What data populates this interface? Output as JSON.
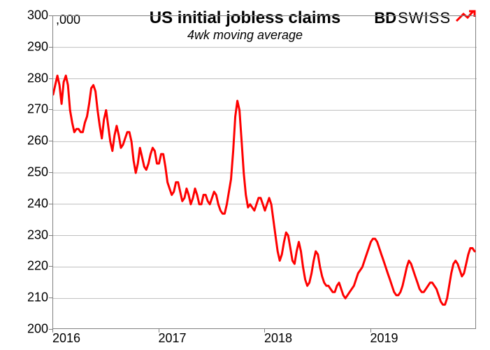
{
  "chart": {
    "type": "line",
    "title": "US initial jobless claims",
    "subtitle": "4wk moving average",
    "unit_label": ",000",
    "title_fontsize": 24,
    "subtitle_fontsize": 18,
    "background_color": "#ffffff",
    "border_color": "#808080",
    "grid_color": "#808080",
    "line_color": "#ff0000",
    "line_width": 3,
    "x_axis": {
      "min": 2016.0,
      "max": 2020.0,
      "ticks": [
        2016,
        2017,
        2018,
        2019
      ],
      "fontsize": 18
    },
    "y_axis": {
      "min": 200,
      "max": 300,
      "ticks": [
        200,
        210,
        220,
        230,
        240,
        250,
        260,
        270,
        280,
        290,
        300
      ],
      "fontsize": 18
    },
    "series": {
      "x": [
        2016.0,
        2016.02,
        2016.04,
        2016.06,
        2016.08,
        2016.1,
        2016.12,
        2016.14,
        2016.16,
        2016.18,
        2016.2,
        2016.22,
        2016.24,
        2016.26,
        2016.28,
        2016.3,
        2016.32,
        2016.34,
        2016.36,
        2016.38,
        2016.4,
        2016.42,
        2016.44,
        2016.46,
        2016.48,
        2016.5,
        2016.52,
        2016.54,
        2016.56,
        2016.58,
        2016.6,
        2016.62,
        2016.64,
        2016.66,
        2016.68,
        2016.7,
        2016.72,
        2016.74,
        2016.76,
        2016.78,
        2016.8,
        2016.82,
        2016.84,
        2016.86,
        2016.88,
        2016.9,
        2016.92,
        2016.94,
        2016.96,
        2016.98,
        2017.0,
        2017.02,
        2017.04,
        2017.06,
        2017.08,
        2017.1,
        2017.12,
        2017.14,
        2017.16,
        2017.18,
        2017.2,
        2017.22,
        2017.24,
        2017.26,
        2017.28,
        2017.3,
        2017.32,
        2017.34,
        2017.36,
        2017.38,
        2017.4,
        2017.42,
        2017.44,
        2017.46,
        2017.48,
        2017.5,
        2017.52,
        2017.54,
        2017.56,
        2017.58,
        2017.6,
        2017.62,
        2017.64,
        2017.66,
        2017.68,
        2017.7,
        2017.72,
        2017.74,
        2017.76,
        2017.78,
        2017.8,
        2017.82,
        2017.84,
        2017.86,
        2017.88,
        2017.9,
        2017.92,
        2017.94,
        2017.96,
        2017.98,
        2018.0,
        2018.02,
        2018.04,
        2018.06,
        2018.08,
        2018.1,
        2018.12,
        2018.14,
        2018.16,
        2018.18,
        2018.2,
        2018.22,
        2018.24,
        2018.26,
        2018.28,
        2018.3,
        2018.32,
        2018.34,
        2018.36,
        2018.38,
        2018.4,
        2018.42,
        2018.44,
        2018.46,
        2018.48,
        2018.5,
        2018.52,
        2018.54,
        2018.56,
        2018.58,
        2018.6,
        2018.62,
        2018.64,
        2018.66,
        2018.68,
        2018.7,
        2018.72,
        2018.74,
        2018.76,
        2018.78,
        2018.8,
        2018.82,
        2018.84,
        2018.86,
        2018.88,
        2018.9,
        2018.92,
        2018.94,
        2018.96,
        2018.98,
        2019.0,
        2019.02,
        2019.04,
        2019.06,
        2019.08,
        2019.1,
        2019.12,
        2019.14,
        2019.16,
        2019.18,
        2019.2,
        2019.22,
        2019.24,
        2019.26,
        2019.28,
        2019.3,
        2019.32,
        2019.34,
        2019.36,
        2019.38,
        2019.4,
        2019.42,
        2019.44,
        2019.46,
        2019.48,
        2019.5,
        2019.52,
        2019.54,
        2019.56,
        2019.58,
        2019.6,
        2019.62,
        2019.64,
        2019.66,
        2019.68,
        2019.7,
        2019.72,
        2019.74,
        2019.76,
        2019.78,
        2019.8,
        2019.82,
        2019.84,
        2019.86,
        2019.88,
        2019.9,
        2019.92,
        2019.94,
        2019.96,
        2019.98
      ],
      "y": [
        275,
        278,
        281,
        278,
        272,
        279,
        281,
        278,
        270,
        266,
        263,
        264,
        264,
        263,
        263,
        266,
        268,
        272,
        277,
        278,
        276,
        270,
        265,
        261,
        267,
        270,
        265,
        260,
        257,
        262,
        265,
        262,
        258,
        259,
        261,
        263,
        263,
        260,
        254,
        250,
        253,
        258,
        255,
        252,
        251,
        253,
        256,
        258,
        257,
        253,
        253,
        256,
        256,
        252,
        247,
        245,
        243,
        244,
        247,
        247,
        244,
        241,
        242,
        245,
        243,
        240,
        242,
        245,
        243,
        240,
        240,
        243,
        243,
        241,
        240,
        242,
        244,
        243,
        240,
        238,
        237,
        237,
        240,
        244,
        248,
        257,
        268,
        273,
        270,
        260,
        250,
        243,
        239,
        240,
        239,
        238,
        240,
        242,
        242,
        240,
        238,
        240,
        242,
        240,
        235,
        230,
        225,
        222,
        224,
        228,
        231,
        230,
        226,
        222,
        221,
        225,
        228,
        225,
        220,
        216,
        214,
        215,
        218,
        222,
        225,
        224,
        220,
        217,
        215,
        214,
        214,
        213,
        212,
        212,
        214,
        215,
        213,
        211,
        210,
        211,
        212,
        213,
        214,
        216,
        218,
        219,
        220,
        222,
        224,
        226,
        228,
        229,
        229,
        228,
        226,
        224,
        222,
        220,
        218,
        216,
        214,
        212,
        211,
        211,
        212,
        214,
        217,
        220,
        222,
        221,
        219,
        217,
        215,
        213,
        212,
        212,
        213,
        214,
        215,
        215,
        214,
        213,
        211,
        209,
        208,
        208,
        210,
        214,
        218,
        221,
        222,
        221,
        219,
        217,
        218,
        221,
        224,
        226,
        226,
        225
      ]
    }
  },
  "logo": {
    "text_bd": "BD",
    "text_swiss": "SWISS",
    "arrow_color": "#ff0000"
  }
}
